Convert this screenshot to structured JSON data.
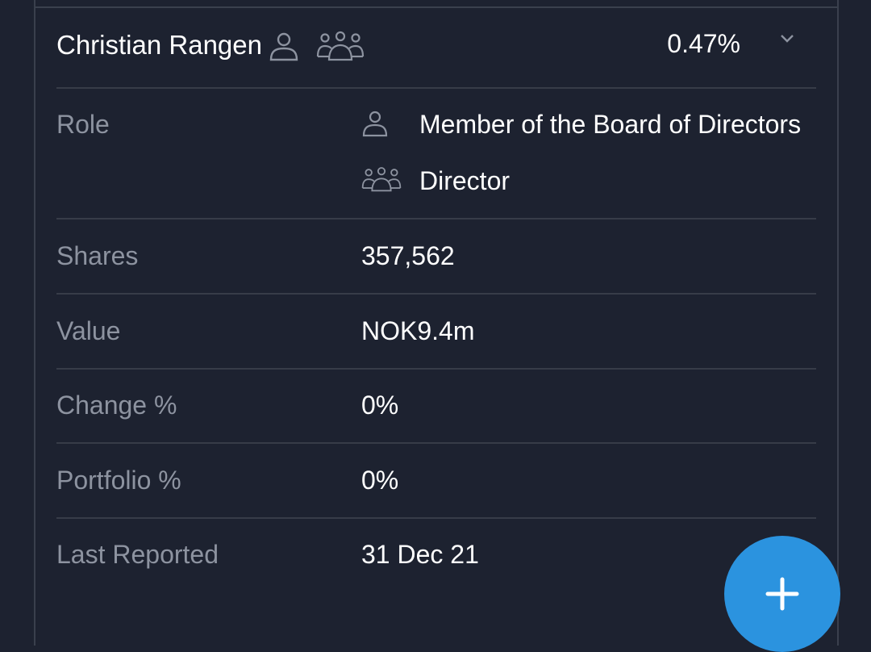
{
  "insider": {
    "name": "Christian Rangen",
    "ownership_pct": "0.47%",
    "header_icons": [
      "person-icon",
      "group-icon"
    ]
  },
  "details": {
    "role": {
      "label": "Role",
      "entries": [
        {
          "icon": "person-icon",
          "text": "Member of the Board of Directors"
        },
        {
          "icon": "group-icon",
          "text": "Director"
        }
      ]
    },
    "shares": {
      "label": "Shares",
      "value": "357,562"
    },
    "value": {
      "label": "Value",
      "value": "NOK9.4m"
    },
    "change_pct": {
      "label": "Change %",
      "value": "0%"
    },
    "portfolio_pct": {
      "label": "Portfolio %",
      "value": "0%"
    },
    "last_reported": {
      "label": "Last Reported",
      "value": "31 Dec 21"
    }
  },
  "fab": {
    "icon": "plus-icon",
    "color": "#2b93df"
  },
  "colors": {
    "background": "#1d2230",
    "label": "#8d93a0",
    "value": "#ffffff",
    "divider": "#373c48"
  }
}
